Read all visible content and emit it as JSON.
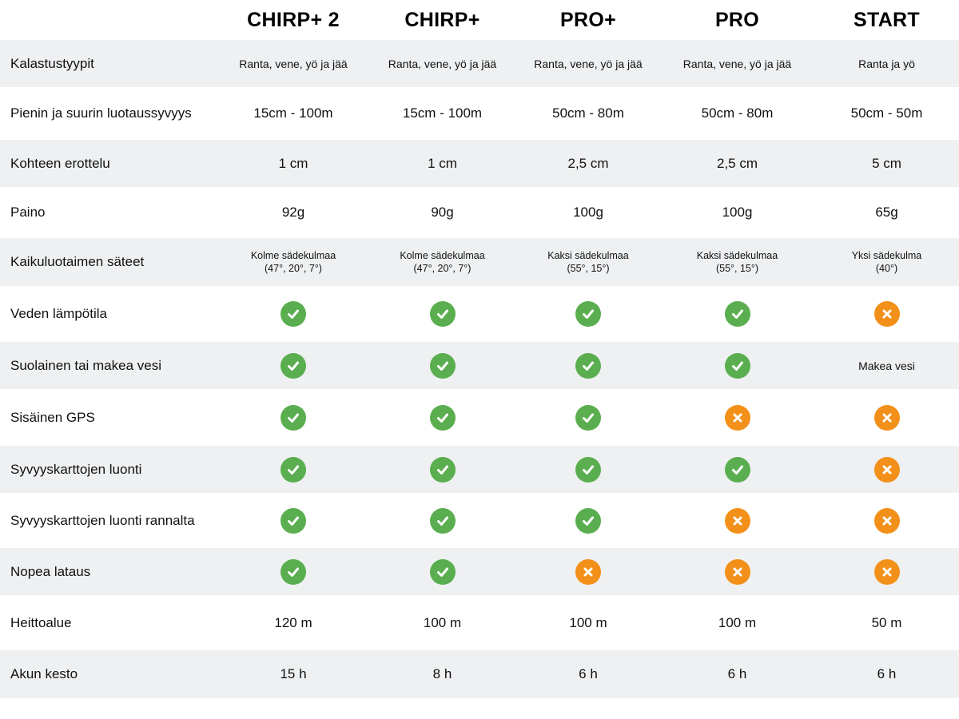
{
  "columns": [
    "CHIRP+ 2",
    "CHIRP+",
    "PRO+",
    "PRO",
    "START"
  ],
  "rows": [
    {
      "label": "Kalastustyypit",
      "type": "text-small",
      "cells": [
        "Ranta, vene, yö ja jää",
        "Ranta, vene, yö ja jää",
        "Ranta, vene, yö ja jää",
        "Ranta, vene, yö ja jää",
        "Ranta ja yö"
      ]
    },
    {
      "label": "Pienin ja suurin luotaussyvyys",
      "type": "text",
      "cells": [
        "15cm - 100m",
        "15cm - 100m",
        "50cm - 80m",
        "50cm - 80m",
        "50cm - 50m"
      ]
    },
    {
      "label": "Kohteen erottelu",
      "type": "text",
      "cells": [
        "1 cm",
        "1 cm",
        "2,5 cm",
        "2,5 cm",
        "5 cm"
      ]
    },
    {
      "label": "Paino",
      "type": "text",
      "cells": [
        "92g",
        "90g",
        "100g",
        "100g",
        "65g"
      ]
    },
    {
      "label": "Kaikuluotaimen säteet",
      "type": "text-tiny",
      "cells": [
        [
          "Kolme sädekulmaa",
          "(47°, 20°, 7°)"
        ],
        [
          "Kolme sädekulmaa",
          "(47°, 20°, 7°)"
        ],
        [
          "Kaksi sädekulmaa",
          "(55°, 15°)"
        ],
        [
          "Kaksi sädekulmaa",
          "(55°, 15°)"
        ],
        [
          "Yksi sädekulma",
          "(40°)"
        ]
      ]
    },
    {
      "label": "Veden lämpötila",
      "type": "icons",
      "cells": [
        "check",
        "check",
        "check",
        "check",
        "cross"
      ]
    },
    {
      "label": "Suolainen tai makea vesi",
      "type": "icons",
      "cells": [
        "check",
        "check",
        "check",
        "check",
        "Makea vesi"
      ]
    },
    {
      "label": "Sisäinen GPS",
      "type": "icons",
      "cells": [
        "check",
        "check",
        "check",
        "cross",
        "cross"
      ]
    },
    {
      "label": "Syvyyskarttojen luonti",
      "type": "icons",
      "cells": [
        "check",
        "check",
        "check",
        "check",
        "cross"
      ]
    },
    {
      "label": "Syvyyskarttojen luonti rannalta",
      "type": "icons",
      "cells": [
        "check",
        "check",
        "check",
        "cross",
        "cross"
      ]
    },
    {
      "label": "Nopea lataus",
      "type": "icons",
      "cells": [
        "check",
        "check",
        "cross",
        "cross",
        "cross"
      ]
    },
    {
      "label": "Heittoalue",
      "type": "text",
      "cells": [
        "120 m",
        "100 m",
        "100 m",
        "100 m",
        "50 m"
      ]
    },
    {
      "label": "Akun kesto",
      "type": "text",
      "cells": [
        "15 h",
        "8 h",
        "6 h",
        "6 h",
        "6 h"
      ]
    }
  ],
  "icons": {
    "check": "check-icon",
    "cross": "cross-icon"
  },
  "colors": {
    "check": "#5aae4f",
    "cross": "#f39019",
    "row_shade": "#eef0f2"
  }
}
